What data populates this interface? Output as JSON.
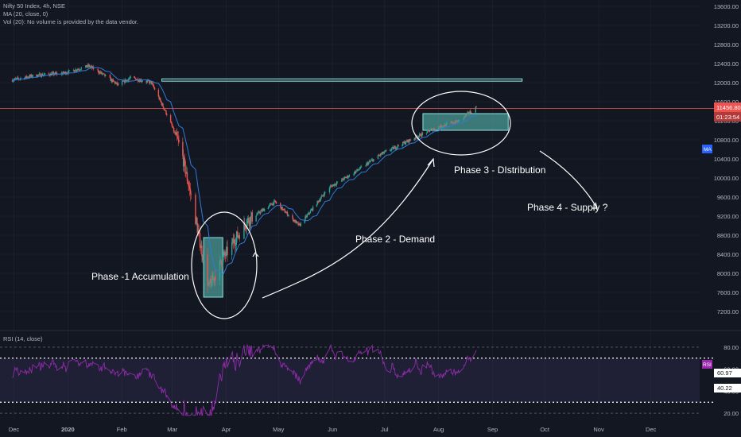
{
  "legend": {
    "symbol": "Nifty 50 Index, 4h, NSE",
    "ma": "MA (20, close, 0)",
    "vol": "Vol (20): No volume is provided by the data vendor.",
    "rsi": "RSI (14, close)"
  },
  "badges": {
    "price": "11456.80",
    "countdown": "01:23:54",
    "ma": "MA",
    "rsi": "RSI",
    "rsi_value": "60.97",
    "rsi_level": "40.22"
  },
  "annotations": {
    "phase1": "Phase -1 Accumulation",
    "phase2": "Phase 2 - Demand",
    "phase3": "Phase 3 - DIstribution",
    "phase4": "Phase 4  - Supply ?"
  },
  "colors": {
    "background": "#131722",
    "up": "#26a69a",
    "down": "#ef5350",
    "ma_line": "#2f7bd8",
    "rsi_line": "#8e2ca8",
    "box": "#5fc9c0",
    "price_line": "#ef5350",
    "grid": "#1f2430"
  },
  "chart_data": [
    {
      "type": "candlestick",
      "title": "Nifty 50 Index, 4h, NSE",
      "x_ticks": [
        "Dec",
        "2020",
        "Feb",
        "Mar",
        "Apr",
        "May",
        "Jun",
        "Jul",
        "Aug",
        "Sep",
        "Oct",
        "Nov",
        "Dec"
      ],
      "y_ticks": [
        7200,
        7600,
        8000,
        8400,
        8800,
        9200,
        9600,
        10000,
        10400,
        10800,
        11200,
        11600,
        12000,
        12400,
        12800,
        13200,
        13600
      ],
      "ylim": [
        6900,
        13700
      ],
      "last_price": 11456.8,
      "resistance": 12050,
      "path": [
        [
          "2019-12-01",
          12050
        ],
        [
          "2019-12-15",
          12150
        ],
        [
          "2020-01-01",
          12200
        ],
        [
          "2020-01-15",
          12350
        ],
        [
          "2020-01-22",
          12200
        ],
        [
          "2020-02-01",
          11950
        ],
        [
          "2020-02-08",
          12100
        ],
        [
          "2020-02-20",
          12000
        ],
        [
          "2020-03-01",
          11250
        ],
        [
          "2020-03-08",
          10600
        ],
        [
          "2020-03-15",
          9400
        ],
        [
          "2020-03-24",
          7700
        ],
        [
          "2020-04-01",
          8300
        ],
        [
          "2020-04-15",
          9100
        ],
        [
          "2020-05-01",
          9500
        ],
        [
          "2020-05-15",
          9000
        ],
        [
          "2020-06-01",
          9800
        ],
        [
          "2020-06-15",
          10100
        ],
        [
          "2020-07-01",
          10500
        ],
        [
          "2020-07-15",
          10750
        ],
        [
          "2020-08-01",
          11050
        ],
        [
          "2020-08-15",
          11200
        ],
        [
          "2020-08-25",
          11500
        ]
      ]
    },
    {
      "type": "line",
      "title": "RSI (14, close)",
      "y_ticks": [
        20,
        40,
        60,
        80
      ],
      "ylim": [
        15,
        85
      ],
      "levels": [
        30,
        70
      ],
      "value": 60.97,
      "band_value": 40.22
    }
  ],
  "annotation_data": {
    "phase1_box": {
      "x": [
        "2020-03-21",
        "2020-04-01"
      ],
      "y": [
        7500,
        8750
      ]
    },
    "phase3_box": {
      "x": [
        "2020-07-25",
        "2020-09-12"
      ],
      "y": [
        11000,
        11350
      ]
    },
    "resistance_box": {
      "x": [
        "2020-02-26",
        "2020-09-20"
      ],
      "y": [
        12030,
        12080
      ]
    }
  }
}
